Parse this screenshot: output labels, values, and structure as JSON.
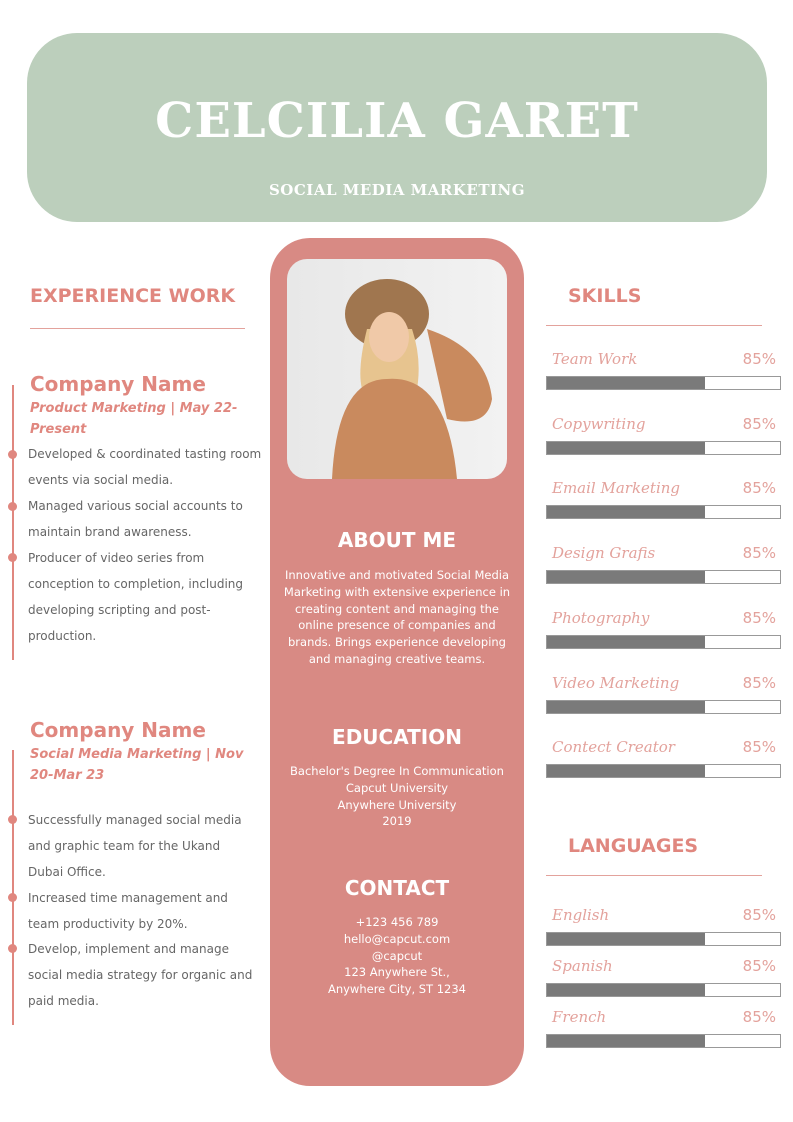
{
  "header": {
    "name": "CELCILIA GARET",
    "role": "SOCIAL MEDIA MARKETING"
  },
  "colors": {
    "header_bg": "#bccfbc",
    "accent": "#d88a84",
    "bar_fill": "#7a7a7a"
  },
  "experience": {
    "heading": "EXPERIENCE WORK",
    "jobs": [
      {
        "company": "Company Name",
        "subtitle": "Product Marketing | May 22-Present",
        "bullets": [
          "Developed & coordinated tasting room events via social media.",
          "Managed various social accounts to maintain brand awareness.",
          "Producer of video series from conception to completion, including developing scripting and post-production."
        ]
      },
      {
        "company": "Company Name",
        "subtitle": "Social Media Marketing | Nov 20-Mar 23",
        "bullets": [
          "Successfully managed social media and graphic team for the Ukand Dubai Office.",
          "Increased time management and team productivity by 20%.",
          "Develop, implement and manage social media strategy for organic and paid media."
        ]
      }
    ]
  },
  "about": {
    "heading": "ABOUT ME",
    "text": "Innovative and motivated Social Media Marketing with extensive experience in creating content and managing the online presence of companies and brands. Brings experience developing and managing creative teams."
  },
  "education": {
    "heading": "EDUCATION",
    "lines": [
      "Bachelor's Degree In Communication",
      "Capcut University",
      "Anywhere University",
      "2019"
    ]
  },
  "contact": {
    "heading": "CONTACT",
    "lines": [
      "+123  456 789",
      "hello@capcut.com",
      "@capcut",
      "123 Anywhere St.,",
      "Anywhere City, ST 1234"
    ]
  },
  "skills": {
    "heading": "SKILLS",
    "items": [
      {
        "name": "Team Work",
        "label": "85%",
        "fill": 68
      },
      {
        "name": "Copywriting",
        "label": "85%",
        "fill": 68
      },
      {
        "name": "Email Marketing",
        "label": "85%",
        "fill": 68
      },
      {
        "name": "Design Grafis",
        "label": "85%",
        "fill": 68
      },
      {
        "name": "Photography",
        "label": "85%",
        "fill": 68
      },
      {
        "name": "Video Marketing",
        "label": "85%",
        "fill": 68
      },
      {
        "name": "Contect Creator",
        "label": "85%",
        "fill": 68
      }
    ]
  },
  "languages": {
    "heading": "LANGUAGES",
    "items": [
      {
        "name": "English",
        "label": "85%",
        "fill": 68
      },
      {
        "name": "Spanish",
        "label": "85%",
        "fill": 68
      },
      {
        "name": "French",
        "label": "85%",
        "fill": 68
      }
    ]
  }
}
